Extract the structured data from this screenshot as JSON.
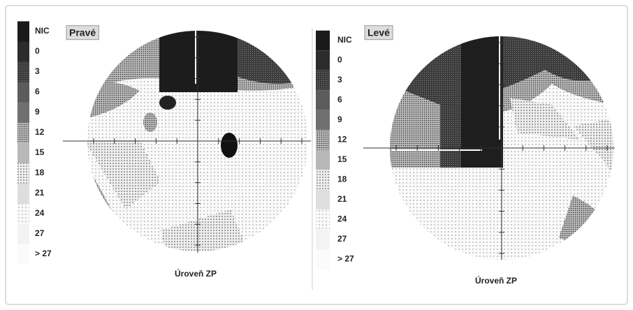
{
  "panels": [
    {
      "title": "Pravé",
      "legend": [
        "NIC",
        "0",
        "3",
        "6",
        "9",
        "12",
        "15",
        "18",
        "21",
        "24",
        "27",
        "> 27"
      ],
      "caption": "Úroveň ZP"
    },
    {
      "title": "Levé",
      "legend": [
        "NIC",
        "0",
        "3",
        "6",
        "9",
        "12",
        "15",
        "18",
        "21",
        "24",
        "27",
        "> 27"
      ],
      "caption": "Úroveň ZP"
    }
  ]
}
